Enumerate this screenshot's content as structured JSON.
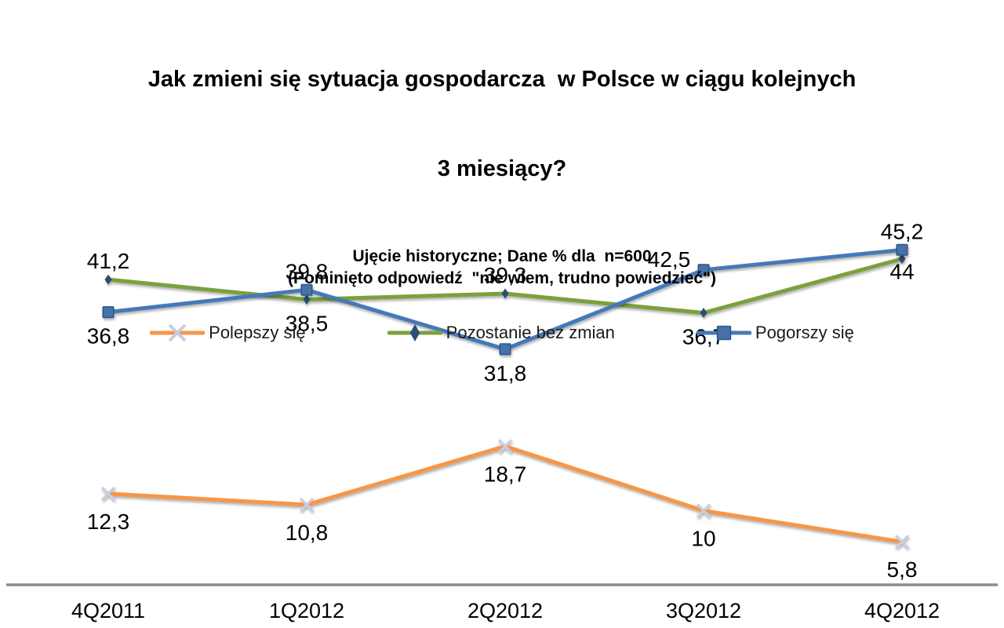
{
  "chart_data": {
    "type": "line",
    "title": "Jak zmieni się sytuacja gospodarcza  w Polsce w ciągu kolejnych 3 miesiący?",
    "title_lines": [
      "Jak zmieni się sytuacja gospodarcza  w Polsce w ciągu kolejnych",
      "3 miesiący?"
    ],
    "subtitle": "Ujęcie historyczne; Dane % dla  n=600",
    "note": "(Pominięto odpowiedź  \"nie wiem, trudno powiedzieć\")",
    "categories": [
      "4Q2011",
      "1Q2012",
      "2Q2012",
      "3Q2012",
      "4Q2012"
    ],
    "series": [
      {
        "name": "Polepszy się",
        "color": "#F79646",
        "marker": {
          "shape": "x",
          "color": "#C7CDE3"
        },
        "values": [
          12.3,
          10.8,
          18.7,
          10,
          5.8
        ],
        "labels": [
          "12,3",
          "10,8",
          "18,7",
          "10",
          "5,8"
        ],
        "label_positions": [
          "below-far",
          "below-far",
          "below-far",
          "below-far",
          "below-far"
        ]
      },
      {
        "name": "Pozostanie bez zmian",
        "color": "#79A13E",
        "marker": {
          "shape": "diamond",
          "color": "#2B4E77"
        },
        "values": [
          41.2,
          38.5,
          39.3,
          36.7,
          44
        ],
        "labels": [
          "41,2",
          "38,5",
          "39,3",
          "36,7",
          "44"
        ],
        "label_positions": [
          "above",
          "below",
          "above",
          "below",
          "below-close"
        ]
      },
      {
        "name": "Pogorszy się",
        "color": "#4579B8",
        "marker": {
          "shape": "square",
          "color": "#4472A8",
          "border": "#2C5784"
        },
        "values": [
          36.8,
          39.8,
          31.8,
          42.5,
          45.2
        ],
        "labels": [
          "36,8",
          "39,8",
          "31,8",
          "42,5",
          "45,2"
        ],
        "label_positions": [
          "below",
          "above",
          "below",
          "left",
          "above"
        ]
      }
    ],
    "ylim": [
      0,
      50
    ],
    "grid": false,
    "legend_position": "top",
    "axis_color": "#8C8C8C",
    "label_color": "#000000"
  }
}
